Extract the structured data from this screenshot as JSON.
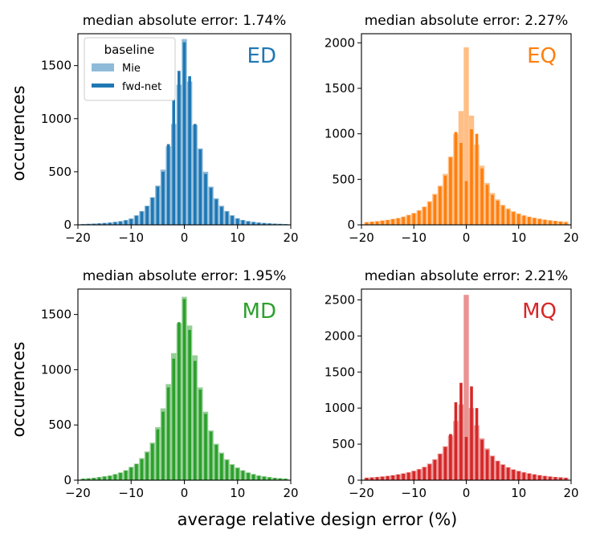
{
  "figure": {
    "ylabel": "occurences",
    "xlabel": "average relative design error (%)",
    "legend": {
      "title": "baseline",
      "entries": [
        "Mie",
        "fwd-net"
      ],
      "location": "top-left of first panel"
    }
  },
  "chart_data": [
    {
      "type": "bar",
      "panel": "ED",
      "title": "median absolute error: 1.74%",
      "label": "ED",
      "color": "#1f77b4",
      "xlim": [
        -20,
        20
      ],
      "ylim": [
        0,
        1800
      ],
      "xticks": [
        -20,
        -10,
        0,
        10,
        20
      ],
      "yticks": [
        0,
        500,
        1000,
        1500
      ],
      "series": [
        {
          "name": "Mie",
          "x": [
            -19,
            -18,
            -17,
            -16,
            -15,
            -14,
            -13,
            -12,
            -11,
            -10,
            -9,
            -8,
            -7,
            -6,
            -5,
            -4,
            -3,
            -2,
            -1,
            0,
            1,
            2,
            3,
            4,
            5,
            6,
            7,
            8,
            9,
            10,
            11,
            12,
            13,
            14,
            15,
            16,
            17,
            18,
            19
          ],
          "values": [
            8,
            10,
            12,
            15,
            18,
            22,
            28,
            35,
            45,
            60,
            90,
            130,
            180,
            260,
            370,
            520,
            740,
            950,
            1320,
            1750,
            1350,
            940,
            720,
            500,
            360,
            250,
            180,
            130,
            90,
            62,
            46,
            35,
            28,
            22,
            18,
            15,
            12,
            10,
            8
          ]
        },
        {
          "name": "fwd-net",
          "x": [
            -19,
            -18,
            -17,
            -16,
            -15,
            -14,
            -13,
            -12,
            -11,
            -10,
            -9,
            -8,
            -7,
            -6,
            -5,
            -4,
            -3,
            -2,
            -1,
            0,
            1,
            2,
            3,
            4,
            5,
            6,
            7,
            8,
            9,
            10,
            11,
            12,
            13,
            14,
            15,
            16,
            17,
            18,
            19
          ],
          "values": [
            6,
            8,
            10,
            13,
            16,
            20,
            26,
            32,
            42,
            55,
            85,
            125,
            175,
            255,
            360,
            500,
            760,
            1180,
            1450,
            1720,
            1400,
            950,
            710,
            480,
            350,
            240,
            170,
            125,
            85,
            58,
            43,
            33,
            26,
            20,
            16,
            13,
            10,
            8,
            6
          ]
        }
      ]
    },
    {
      "type": "bar",
      "panel": "EQ",
      "title": "median absolute error: 2.27%",
      "label": "EQ",
      "color": "#ff7f0e",
      "xlim": [
        -20,
        20
      ],
      "ylim": [
        0,
        2100
      ],
      "xticks": [
        -20,
        -10,
        0,
        10,
        20
      ],
      "yticks": [
        0,
        500,
        1000,
        1500,
        2000
      ],
      "series": [
        {
          "name": "Mie",
          "x": [
            -19,
            -18,
            -17,
            -16,
            -15,
            -14,
            -13,
            -12,
            -11,
            -10,
            -9,
            -8,
            -7,
            -6,
            -5,
            -4,
            -3,
            -2,
            -1,
            0,
            1,
            2,
            3,
            4,
            5,
            6,
            7,
            8,
            9,
            10,
            11,
            12,
            13,
            14,
            15,
            16,
            17,
            18,
            19
          ],
          "values": [
            30,
            35,
            40,
            48,
            55,
            65,
            75,
            90,
            110,
            130,
            160,
            200,
            260,
            340,
            430,
            560,
            750,
            1000,
            1250,
            1950,
            1200,
            880,
            650,
            460,
            350,
            280,
            220,
            180,
            150,
            125,
            105,
            90,
            78,
            68,
            58,
            50,
            44,
            38,
            32
          ]
        },
        {
          "name": "fwd-net",
          "x": [
            -19,
            -18,
            -17,
            -16,
            -15,
            -14,
            -13,
            -12,
            -11,
            -10,
            -9,
            -8,
            -7,
            -6,
            -5,
            -4,
            -3,
            -2,
            -1,
            0,
            1,
            2,
            3,
            4,
            5,
            6,
            7,
            8,
            9,
            10,
            11,
            12,
            13,
            14,
            15,
            16,
            17,
            18,
            19
          ],
          "values": [
            28,
            33,
            38,
            45,
            52,
            62,
            72,
            86,
            105,
            125,
            155,
            195,
            250,
            330,
            420,
            540,
            740,
            1020,
            900,
            480,
            1050,
            1000,
            620,
            440,
            330,
            265,
            210,
            170,
            140,
            118,
            100,
            86,
            74,
            64,
            55,
            48,
            42,
            36,
            30
          ]
        }
      ]
    },
    {
      "type": "bar",
      "panel": "MD",
      "title": "median absolute error: 1.95%",
      "label": "MD",
      "color": "#2ca02c",
      "xlim": [
        -20,
        20
      ],
      "ylim": [
        0,
        1730
      ],
      "xticks": [
        -20,
        -10,
        0,
        10,
        20
      ],
      "yticks": [
        0,
        500,
        1000,
        1500
      ],
      "series": [
        {
          "name": "Mie",
          "x": [
            -19,
            -18,
            -17,
            -16,
            -15,
            -14,
            -13,
            -12,
            -11,
            -10,
            -9,
            -8,
            -7,
            -6,
            -5,
            -4,
            -3,
            -2,
            -1,
            0,
            1,
            2,
            3,
            4,
            5,
            6,
            7,
            8,
            9,
            10,
            11,
            12,
            13,
            14,
            15,
            16,
            17,
            18,
            19
          ],
          "values": [
            15,
            18,
            22,
            28,
            35,
            42,
            55,
            70,
            90,
            120,
            150,
            200,
            260,
            340,
            480,
            650,
            870,
            1150,
            1420,
            1660,
            1400,
            1130,
            840,
            620,
            450,
            330,
            250,
            190,
            145,
            115,
            90,
            70,
            55,
            42,
            35,
            28,
            22,
            18,
            15
          ]
        },
        {
          "name": "fwd-net",
          "x": [
            -19,
            -18,
            -17,
            -16,
            -15,
            -14,
            -13,
            -12,
            -11,
            -10,
            -9,
            -8,
            -7,
            -6,
            -5,
            -4,
            -3,
            -2,
            -1,
            0,
            1,
            2,
            3,
            4,
            5,
            6,
            7,
            8,
            9,
            10,
            11,
            12,
            13,
            14,
            15,
            16,
            17,
            18,
            19
          ],
          "values": [
            13,
            16,
            20,
            26,
            33,
            40,
            52,
            66,
            86,
            115,
            145,
            190,
            250,
            330,
            460,
            620,
            840,
            1100,
            1430,
            1640,
            1360,
            1080,
            820,
            600,
            440,
            320,
            240,
            180,
            138,
            108,
            85,
            66,
            52,
            40,
            32,
            26,
            20,
            16,
            13
          ]
        }
      ]
    },
    {
      "type": "bar",
      "panel": "MQ",
      "title": "median absolute error: 2.21%",
      "label": "MQ",
      "color": "#d62728",
      "xlim": [
        -20,
        20
      ],
      "ylim": [
        0,
        2650
      ],
      "xticks": [
        -20,
        -10,
        0,
        10,
        20
      ],
      "yticks": [
        0,
        500,
        1000,
        1500,
        2000,
        2500
      ],
      "series": [
        {
          "name": "Mie",
          "x": [
            -19,
            -18,
            -17,
            -16,
            -15,
            -14,
            -13,
            -12,
            -11,
            -10,
            -9,
            -8,
            -7,
            -6,
            -5,
            -4,
            -3,
            -2,
            -1,
            0,
            1,
            2,
            3,
            4,
            5,
            6,
            7,
            8,
            9,
            10,
            11,
            12,
            13,
            14,
            15,
            16,
            17,
            18,
            19
          ],
          "values": [
            35,
            40,
            45,
            52,
            60,
            70,
            82,
            95,
            110,
            130,
            155,
            185,
            230,
            290,
            370,
            470,
            620,
            820,
            1050,
            2570,
            1000,
            760,
            580,
            440,
            340,
            270,
            220,
            180,
            150,
            128,
            110,
            95,
            82,
            70,
            60,
            52,
            45,
            40,
            35
          ]
        },
        {
          "name": "fwd-net",
          "x": [
            -19,
            -18,
            -17,
            -16,
            -15,
            -14,
            -13,
            -12,
            -11,
            -10,
            -9,
            -8,
            -7,
            -6,
            -5,
            -4,
            -3,
            -2,
            -1,
            0,
            1,
            2,
            3,
            4,
            5,
            6,
            7,
            8,
            9,
            10,
            11,
            12,
            13,
            14,
            15,
            16,
            17,
            18,
            19
          ],
          "values": [
            32,
            37,
            42,
            49,
            57,
            66,
            78,
            90,
            105,
            125,
            148,
            178,
            220,
            280,
            360,
            460,
            640,
            1080,
            1350,
            600,
            1300,
            1000,
            560,
            420,
            330,
            262,
            212,
            174,
            145,
            124,
            106,
            92,
            79,
            67,
            57,
            49,
            42,
            37,
            32
          ]
        }
      ]
    }
  ]
}
